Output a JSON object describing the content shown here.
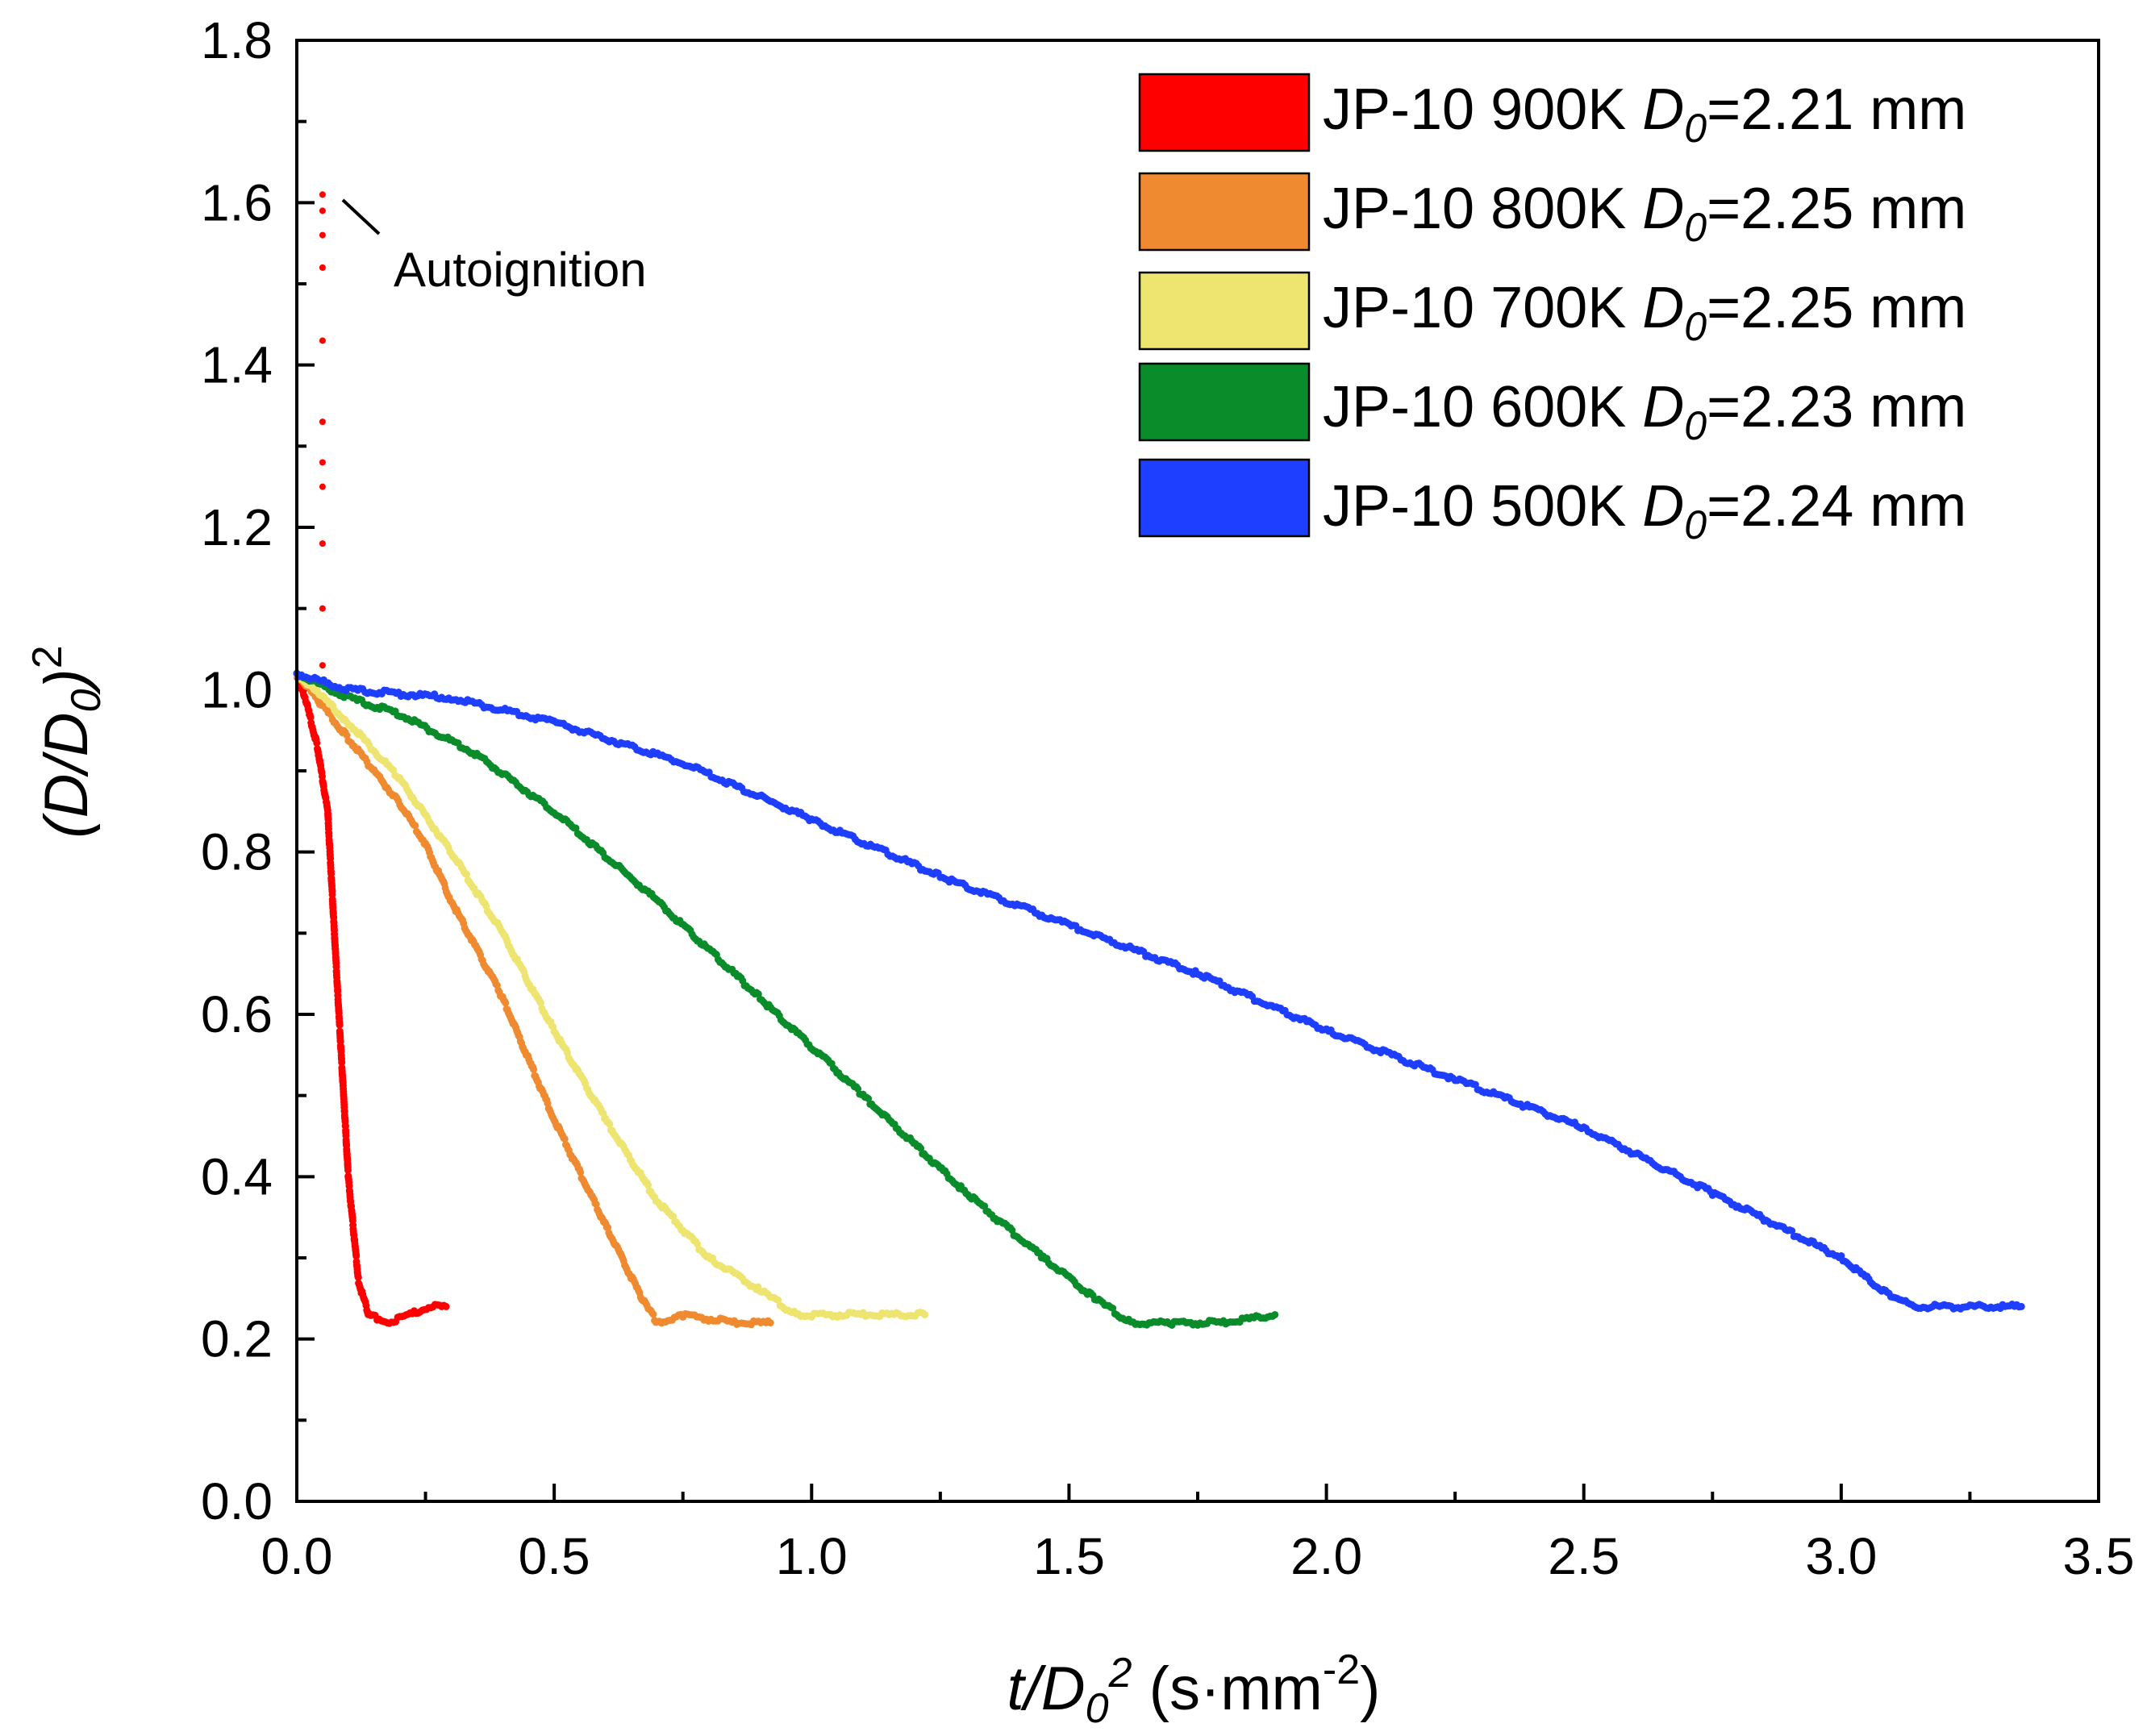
{
  "chart_data": {
    "type": "scatter",
    "title": "",
    "xlabel": {
      "var": "t/D",
      "sub": "0",
      "sup": "2",
      "unit_prefix": " (s·mm",
      "unit_sup": "-2",
      "unit_suffix": ")"
    },
    "ylabel": {
      "open": "(D/D",
      "sub": "0",
      "close": ")",
      "sup": "2"
    },
    "xlim": [
      0,
      3.5
    ],
    "ylim": [
      0,
      1.8
    ],
    "xticks": [
      "0.0",
      "0.5",
      "1.0",
      "1.5",
      "2.0",
      "2.5",
      "3.0",
      "3.5"
    ],
    "yticks": [
      "0.0",
      "0.2",
      "0.4",
      "0.6",
      "0.8",
      "1.0",
      "1.2",
      "1.4",
      "1.6",
      "1.8"
    ],
    "legend_position": "top-right",
    "series": [
      {
        "name": "JP-10 900K",
        "d0_label": "D",
        "d0_sub": "0",
        "d0_value": "=2.21 mm",
        "color": "#ff0000",
        "points": [
          [
            0,
            1.02
          ],
          [
            0.02,
            0.98
          ],
          [
            0.04,
            0.93
          ],
          [
            0.06,
            0.85
          ],
          [
            0.08,
            0.62
          ],
          [
            0.1,
            0.4
          ],
          [
            0.12,
            0.27
          ],
          [
            0.14,
            0.23
          ],
          [
            0.18,
            0.22
          ],
          [
            0.22,
            0.23
          ],
          [
            0.26,
            0.24
          ],
          [
            0.29,
            0.24
          ]
        ]
      },
      {
        "name": "JP-10 800K",
        "d0_label": "D",
        "d0_sub": "0",
        "d0_value": "=2.25 mm",
        "color": "#f08a30",
        "points": [
          [
            0,
            1.02
          ],
          [
            0.05,
            0.98
          ],
          [
            0.1,
            0.94
          ],
          [
            0.15,
            0.9
          ],
          [
            0.2,
            0.86
          ],
          [
            0.25,
            0.81
          ],
          [
            0.3,
            0.74
          ],
          [
            0.4,
            0.62
          ],
          [
            0.5,
            0.47
          ],
          [
            0.6,
            0.34
          ],
          [
            0.67,
            0.25
          ],
          [
            0.7,
            0.22
          ],
          [
            0.75,
            0.23
          ],
          [
            0.85,
            0.22
          ],
          [
            0.92,
            0.22
          ]
        ]
      },
      {
        "name": "JP-10 700K",
        "d0_label": "D",
        "d0_sub": "0",
        "d0_value": "=2.25 mm",
        "color": "#eee470",
        "points": [
          [
            0,
            1.02
          ],
          [
            0.05,
            0.99
          ],
          [
            0.1,
            0.96
          ],
          [
            0.2,
            0.89
          ],
          [
            0.3,
            0.8
          ],
          [
            0.4,
            0.7
          ],
          [
            0.5,
            0.58
          ],
          [
            0.6,
            0.47
          ],
          [
            0.7,
            0.37
          ],
          [
            0.8,
            0.3
          ],
          [
            0.9,
            0.26
          ],
          [
            0.97,
            0.23
          ],
          [
            1.0,
            0.23
          ],
          [
            1.1,
            0.23
          ],
          [
            1.22,
            0.23
          ]
        ]
      },
      {
        "name": "JP-10 600K",
        "d0_label": "D",
        "d0_sub": "0",
        "d0_value": "=2.23 mm",
        "color": "#0a8c2a",
        "points": [
          [
            0,
            1.02
          ],
          [
            0.1,
            0.99
          ],
          [
            0.2,
            0.97
          ],
          [
            0.35,
            0.92
          ],
          [
            0.5,
            0.85
          ],
          [
            0.7,
            0.74
          ],
          [
            0.9,
            0.62
          ],
          [
            1.1,
            0.5
          ],
          [
            1.3,
            0.38
          ],
          [
            1.45,
            0.3
          ],
          [
            1.55,
            0.25
          ],
          [
            1.62,
            0.22
          ],
          [
            1.7,
            0.22
          ],
          [
            1.8,
            0.22
          ],
          [
            1.9,
            0.23
          ]
        ]
      },
      {
        "name": "JP-10 500K",
        "d0_label": "D",
        "d0_sub": "0",
        "d0_value": "=2.24 mm",
        "color": "#1e3fff",
        "points": [
          [
            0,
            1.02
          ],
          [
            0.1,
            1.0
          ],
          [
            0.3,
            0.99
          ],
          [
            0.5,
            0.96
          ],
          [
            0.75,
            0.91
          ],
          [
            1.0,
            0.84
          ],
          [
            1.25,
            0.77
          ],
          [
            1.5,
            0.71
          ],
          [
            1.75,
            0.65
          ],
          [
            2.0,
            0.58
          ],
          [
            2.25,
            0.52
          ],
          [
            2.5,
            0.46
          ],
          [
            2.75,
            0.38
          ],
          [
            3.0,
            0.3
          ],
          [
            3.1,
            0.25
          ],
          [
            3.15,
            0.24
          ],
          [
            3.25,
            0.24
          ],
          [
            3.35,
            0.24
          ]
        ]
      }
    ],
    "annotations": [
      {
        "text": "Autoignition",
        "points": [
          [
            0.05,
            1.03
          ],
          [
            0.05,
            1.1
          ],
          [
            0.05,
            1.18
          ],
          [
            0.05,
            1.25
          ],
          [
            0.05,
            1.28
          ],
          [
            0.05,
            1.33
          ],
          [
            0.05,
            1.43
          ],
          [
            0.05,
            1.52
          ],
          [
            0.05,
            1.56
          ],
          [
            0.05,
            1.59
          ],
          [
            0.05,
            1.61
          ]
        ],
        "color": "#ff0000"
      }
    ]
  }
}
